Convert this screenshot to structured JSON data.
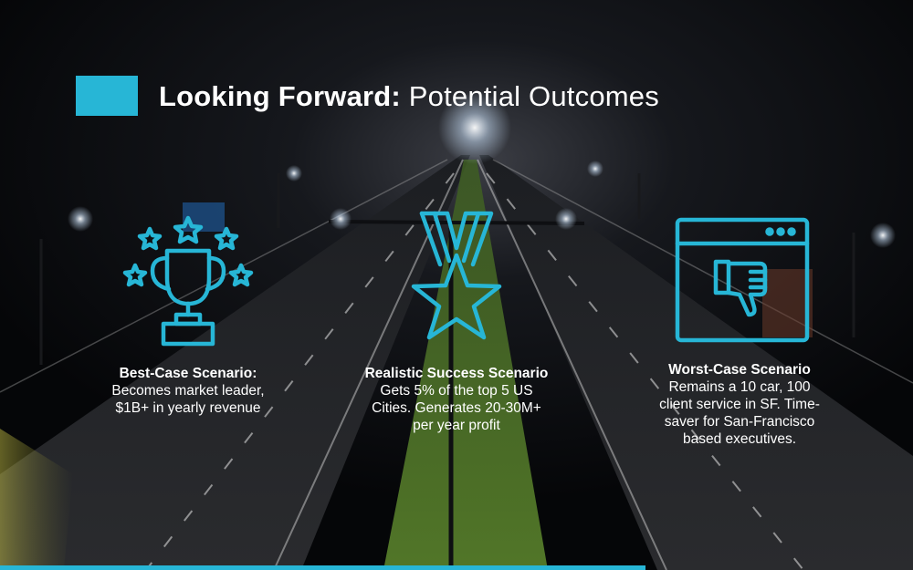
{
  "colors": {
    "accent": "#27b6d6",
    "background": "#050608",
    "text": "#ffffff"
  },
  "title": {
    "bold": "Looking Forward:",
    "light": "Potential Outcomes"
  },
  "scenarios": [
    {
      "icon": "trophy-icon",
      "heading": "Best-Case Scenario:",
      "body_lines": [
        "Becomes market leader,",
        "$1B+ in yearly revenue"
      ]
    },
    {
      "icon": "star-medal-icon",
      "heading": "Realistic Success Scenario",
      "body_lines": [
        "Gets 5% of the top 5 US",
        "Cities. Generates 20-30M+",
        "per year profit"
      ]
    },
    {
      "icon": "thumbs-down-window-icon",
      "heading": "Worst-Case Scenario",
      "body_lines": [
        "Remains a 10 car, 100",
        "client service in SF. Time-",
        "saver for San-Francisco",
        "based executives."
      ]
    }
  ]
}
